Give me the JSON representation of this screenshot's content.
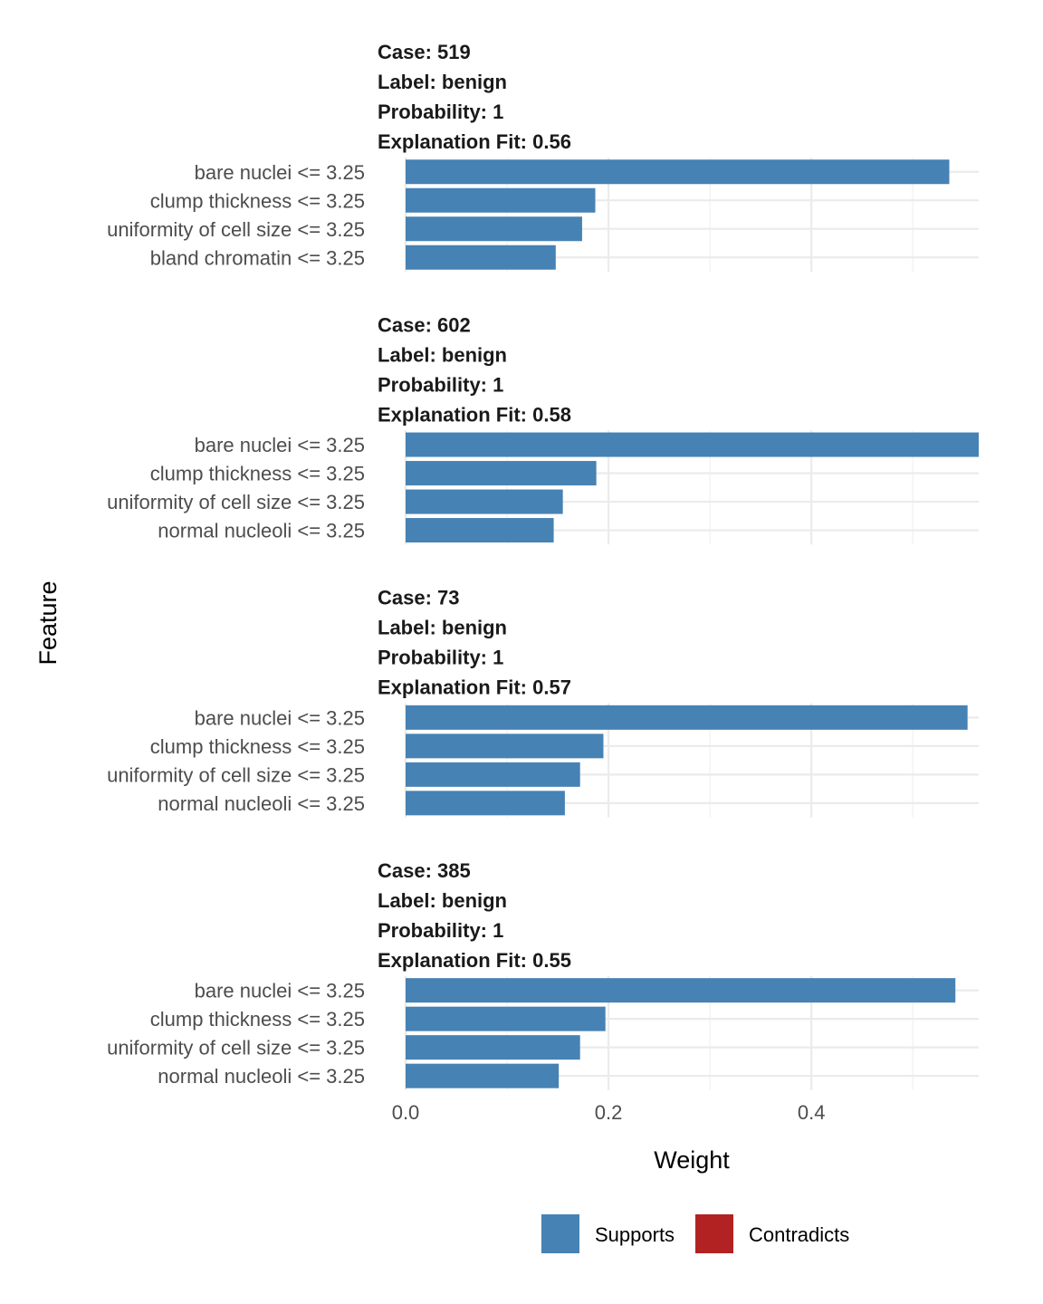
{
  "chart_data": {
    "type": "bar",
    "orientation": "horizontal",
    "xlabel": "Weight",
    "ylabel": "Feature",
    "xlim": [
      0,
      0.565
    ],
    "x_ticks": [
      {
        "value": 0.0,
        "label": "0.0"
      },
      {
        "value": 0.2,
        "label": "0.2"
      },
      {
        "value": 0.4,
        "label": "0.4"
      }
    ],
    "minor_grid": [
      0.1,
      0.3,
      0.5
    ],
    "grid": true,
    "legend": {
      "placement": "bottom",
      "entries": [
        {
          "label": "Supports",
          "color": "#4682B4"
        },
        {
          "label": "Contradicts",
          "color": "#B22222"
        }
      ]
    },
    "facets": [
      {
        "title_lines": [
          "Case: 519",
          "Label: benign",
          "Probability: 1",
          "Explanation Fit: 0.56"
        ],
        "features": [
          "bare nuclei <= 3.25",
          "clump thickness <= 3.25",
          "uniformity of cell size <= 3.25",
          "bland chromatin <= 3.25"
        ],
        "values": [
          0.536,
          0.187,
          0.174,
          0.148
        ],
        "support": [
          "Supports",
          "Supports",
          "Supports",
          "Supports"
        ]
      },
      {
        "title_lines": [
          "Case: 602",
          "Label: benign",
          "Probability: 1",
          "Explanation Fit: 0.58"
        ],
        "features": [
          "bare nuclei <= 3.25",
          "clump thickness <= 3.25",
          "uniformity of cell size <= 3.25",
          "normal nucleoli <= 3.25"
        ],
        "values": [
          0.565,
          0.188,
          0.155,
          0.146
        ],
        "support": [
          "Supports",
          "Supports",
          "Supports",
          "Supports"
        ]
      },
      {
        "title_lines": [
          "Case: 73",
          "Label: benign",
          "Probability: 1",
          "Explanation Fit: 0.57"
        ],
        "features": [
          "bare nuclei <= 3.25",
          "clump thickness <= 3.25",
          "uniformity of cell size <= 3.25",
          "normal nucleoli <= 3.25"
        ],
        "values": [
          0.554,
          0.195,
          0.172,
          0.157
        ],
        "support": [
          "Supports",
          "Supports",
          "Supports",
          "Supports"
        ]
      },
      {
        "title_lines": [
          "Case: 385",
          "Label: benign",
          "Probability: 1",
          "Explanation Fit: 0.55"
        ],
        "features": [
          "bare nuclei <= 3.25",
          "clump thickness <= 3.25",
          "uniformity of cell size <= 3.25",
          "normal nucleoli <= 3.25"
        ],
        "values": [
          0.542,
          0.197,
          0.172,
          0.151
        ],
        "support": [
          "Supports",
          "Supports",
          "Supports",
          "Supports"
        ]
      }
    ]
  }
}
